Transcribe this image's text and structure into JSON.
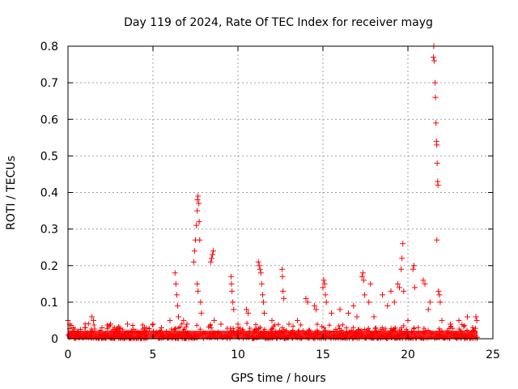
{
  "chart_data": {
    "type": "scatter",
    "title": "Day 119 of 2024, Rate Of TEC Index for receiver mayg",
    "xlabel": "GPS time / hours",
    "ylabel": "ROTI / TECUs",
    "xlim": [
      0,
      25
    ],
    "ylim": [
      0,
      0.8
    ],
    "xticks": [
      "0",
      "5",
      "10",
      "15",
      "20",
      "25"
    ],
    "yticks": [
      "0",
      "0.1",
      "0.2",
      "0.3",
      "0.4",
      "0.5",
      "0.6",
      "0.7",
      "0.8"
    ],
    "grid": true,
    "marker": "plus",
    "color": "#ff0000",
    "series": [
      {
        "points": [
          [
            0.0,
            0.05
          ],
          [
            0.1,
            0.04
          ],
          [
            0.3,
            0.03
          ],
          [
            0.6,
            0.02
          ],
          [
            1.0,
            0.03
          ],
          [
            1.4,
            0.06
          ],
          [
            1.5,
            0.05
          ],
          [
            2.0,
            0.03
          ],
          [
            2.5,
            0.04
          ],
          [
            3.0,
            0.03
          ],
          [
            3.5,
            0.04
          ],
          [
            4.0,
            0.02
          ],
          [
            4.5,
            0.03
          ],
          [
            5.0,
            0.04
          ],
          [
            5.5,
            0.03
          ],
          [
            6.0,
            0.05
          ],
          [
            6.3,
            0.18
          ],
          [
            6.35,
            0.15
          ],
          [
            6.4,
            0.12
          ],
          [
            6.45,
            0.09
          ],
          [
            6.5,
            0.06
          ],
          [
            6.8,
            0.05
          ],
          [
            7.0,
            0.04
          ],
          [
            7.4,
            0.21
          ],
          [
            7.45,
            0.24
          ],
          [
            7.5,
            0.27
          ],
          [
            7.55,
            0.31
          ],
          [
            7.6,
            0.35
          ],
          [
            7.62,
            0.38
          ],
          [
            7.65,
            0.39
          ],
          [
            7.7,
            0.37
          ],
          [
            7.72,
            0.32
          ],
          [
            7.75,
            0.27
          ],
          [
            7.6,
            0.15
          ],
          [
            7.65,
            0.13
          ],
          [
            7.8,
            0.1
          ],
          [
            7.85,
            0.07
          ],
          [
            8.4,
            0.21
          ],
          [
            8.45,
            0.22
          ],
          [
            8.5,
            0.23
          ],
          [
            8.55,
            0.24
          ],
          [
            8.6,
            0.05
          ],
          [
            9.0,
            0.04
          ],
          [
            9.6,
            0.17
          ],
          [
            9.62,
            0.15
          ],
          [
            9.65,
            0.13
          ],
          [
            9.7,
            0.1
          ],
          [
            9.75,
            0.08
          ],
          [
            10.0,
            0.04
          ],
          [
            10.5,
            0.08
          ],
          [
            10.6,
            0.07
          ],
          [
            11.2,
            0.21
          ],
          [
            11.25,
            0.2
          ],
          [
            11.3,
            0.19
          ],
          [
            11.35,
            0.18
          ],
          [
            11.4,
            0.15
          ],
          [
            11.45,
            0.12
          ],
          [
            11.5,
            0.1
          ],
          [
            11.55,
            0.07
          ],
          [
            12.0,
            0.05
          ],
          [
            12.6,
            0.19
          ],
          [
            12.62,
            0.17
          ],
          [
            12.65,
            0.13
          ],
          [
            12.7,
            0.11
          ],
          [
            13.0,
            0.04
          ],
          [
            13.5,
            0.05
          ],
          [
            14.0,
            0.11
          ],
          [
            14.1,
            0.1
          ],
          [
            14.5,
            0.09
          ],
          [
            14.6,
            0.08
          ],
          [
            15.0,
            0.14
          ],
          [
            15.05,
            0.16
          ],
          [
            15.1,
            0.15
          ],
          [
            15.15,
            0.12
          ],
          [
            15.2,
            0.1
          ],
          [
            15.5,
            0.07
          ],
          [
            16.0,
            0.08
          ],
          [
            16.5,
            0.07
          ],
          [
            16.8,
            0.09
          ],
          [
            17.0,
            0.06
          ],
          [
            17.3,
            0.17
          ],
          [
            17.35,
            0.18
          ],
          [
            17.4,
            0.16
          ],
          [
            17.45,
            0.12
          ],
          [
            17.7,
            0.1
          ],
          [
            17.8,
            0.15
          ],
          [
            18.0,
            0.06
          ],
          [
            18.5,
            0.12
          ],
          [
            18.8,
            0.09
          ],
          [
            19.0,
            0.13
          ],
          [
            19.2,
            0.1
          ],
          [
            19.4,
            0.15
          ],
          [
            19.5,
            0.14
          ],
          [
            19.6,
            0.19
          ],
          [
            19.65,
            0.22
          ],
          [
            19.7,
            0.26
          ],
          [
            19.75,
            0.13
          ],
          [
            20.0,
            0.05
          ],
          [
            20.3,
            0.19
          ],
          [
            20.35,
            0.2
          ],
          [
            20.4,
            0.14
          ],
          [
            20.9,
            0.16
          ],
          [
            21.0,
            0.15
          ],
          [
            21.2,
            0.08
          ],
          [
            21.3,
            0.1
          ],
          [
            21.5,
            0.77
          ],
          [
            21.52,
            0.8
          ],
          [
            21.55,
            0.76
          ],
          [
            21.6,
            0.7
          ],
          [
            21.62,
            0.66
          ],
          [
            21.65,
            0.59
          ],
          [
            21.68,
            0.54
          ],
          [
            21.7,
            0.53
          ],
          [
            21.72,
            0.48
          ],
          [
            21.75,
            0.43
          ],
          [
            21.77,
            0.42
          ],
          [
            21.7,
            0.27
          ],
          [
            21.8,
            0.13
          ],
          [
            21.85,
            0.12
          ],
          [
            21.9,
            0.1
          ],
          [
            22.0,
            0.05
          ],
          [
            22.5,
            0.04
          ],
          [
            23.0,
            0.05
          ],
          [
            23.5,
            0.06
          ],
          [
            24.0,
            0.06
          ],
          [
            24.05,
            0.05
          ]
        ]
      }
    ]
  }
}
